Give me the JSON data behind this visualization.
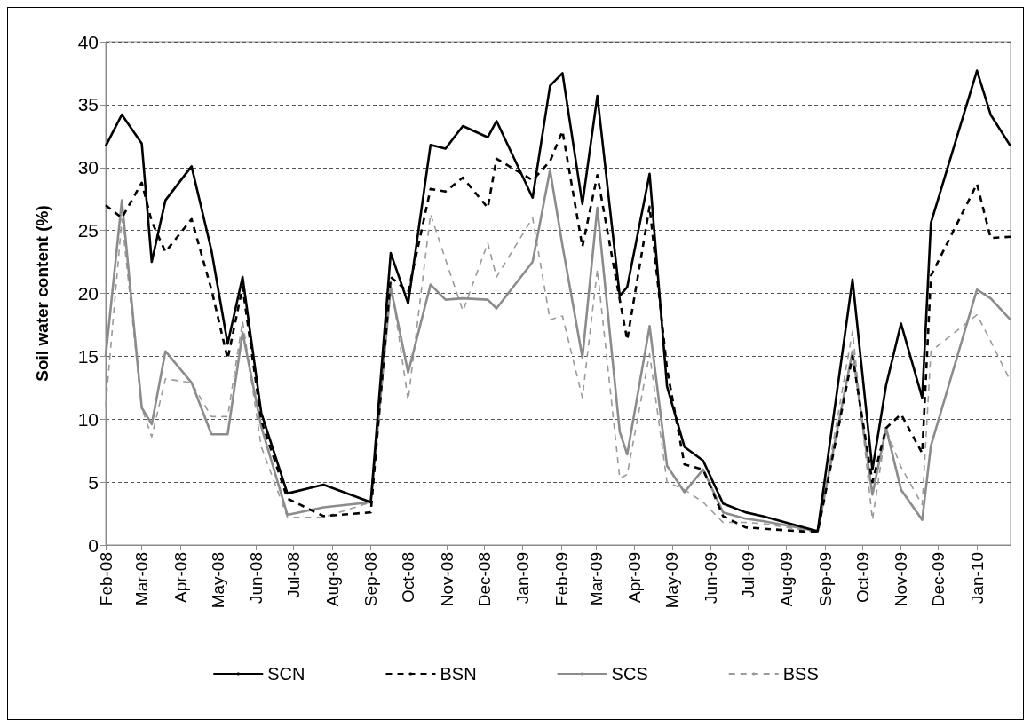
{
  "chart_data": {
    "type": "line",
    "ylabel": "Soil water content (%)",
    "x": [
      "2008-02-01",
      "2008-02-14",
      "2008-03-01",
      "2008-03-09",
      "2008-03-20",
      "2008-04-10",
      "2008-04-26",
      "2008-05-09",
      "2008-05-21",
      "2008-06-05",
      "2008-06-26",
      "2008-07-25",
      "2008-09-01",
      "2008-09-17",
      "2008-10-01",
      "2008-10-19",
      "2008-10-31",
      "2008-11-14",
      "2008-12-04",
      "2008-12-11",
      "2009-01-09",
      "2009-01-23",
      "2009-02-02",
      "2009-02-18",
      "2009-03-02",
      "2009-03-20",
      "2009-03-26",
      "2009-04-13",
      "2009-04-27",
      "2009-05-11",
      "2009-05-26",
      "2009-06-11",
      "2009-06-29",
      "2009-07-13",
      "2009-08-26",
      "2009-09-23",
      "2009-10-09",
      "2009-10-20",
      "2009-11-01",
      "2009-11-18",
      "2009-11-25",
      "2010-01-01",
      "2010-01-12",
      "2010-01-28"
    ],
    "xlim": [
      "2008-02-01",
      "2010-01-28"
    ],
    "xticks": [
      {
        "value": "2008-02-01",
        "label": "Feb-08"
      },
      {
        "value": "2008-03-01",
        "label": "Mar-08"
      },
      {
        "value": "2008-04-01",
        "label": "Apr-08"
      },
      {
        "value": "2008-05-01",
        "label": "May-08"
      },
      {
        "value": "2008-06-01",
        "label": "Jun-08"
      },
      {
        "value": "2008-07-01",
        "label": "Jul-08"
      },
      {
        "value": "2008-08-01",
        "label": "Aug-08"
      },
      {
        "value": "2008-09-01",
        "label": "Sep-08"
      },
      {
        "value": "2008-10-01",
        "label": "Oct-08"
      },
      {
        "value": "2008-11-01",
        "label": "Nov-08"
      },
      {
        "value": "2008-12-01",
        "label": "Dec-08"
      },
      {
        "value": "2009-01-01",
        "label": "Jan-09"
      },
      {
        "value": "2009-02-01",
        "label": "Feb-09"
      },
      {
        "value": "2009-03-01",
        "label": "Mar-09"
      },
      {
        "value": "2009-04-01",
        "label": "Apr-09"
      },
      {
        "value": "2009-05-01",
        "label": "May-09"
      },
      {
        "value": "2009-06-01",
        "label": "Jun-09"
      },
      {
        "value": "2009-07-01",
        "label": "Jul-09"
      },
      {
        "value": "2009-08-01",
        "label": "Aug-09"
      },
      {
        "value": "2009-09-01",
        "label": "Sep-09"
      },
      {
        "value": "2009-10-01",
        "label": "Oct-09"
      },
      {
        "value": "2009-11-01",
        "label": "Nov-09"
      },
      {
        "value": "2009-12-01",
        "label": "Dec-09"
      },
      {
        "value": "2010-01-01",
        "label": "Jan-10"
      }
    ],
    "ylim": [
      0,
      40
    ],
    "yticks": [
      0,
      5,
      10,
      15,
      20,
      25,
      30,
      35,
      40
    ],
    "grid": "y",
    "legend": "bottom",
    "marker": "none",
    "series": [
      {
        "name": "SCN",
        "color": "#000000",
        "line_style": "solid",
        "values": [
          31.7,
          34.2,
          31.9,
          22.5,
          27.4,
          30.1,
          23.4,
          16.0,
          21.3,
          10.5,
          4.1,
          4.8,
          3.4,
          23.2,
          19.2,
          31.8,
          31.5,
          33.3,
          32.4,
          33.7,
          27.6,
          36.5,
          37.5,
          27.1,
          35.7,
          19.8,
          20.5,
          29.5,
          12.6,
          7.8,
          6.7,
          3.3,
          2.6,
          2.3,
          1.1,
          21.1,
          6.0,
          12.7,
          17.6,
          11.7,
          25.6,
          37.7,
          34.2,
          31.7
        ]
      },
      {
        "name": "BSN",
        "color": "#000000",
        "line_style": "dashed",
        "values": [
          27.0,
          26.0,
          28.8,
          25.7,
          23.3,
          25.9,
          20.3,
          14.8,
          20.5,
          9.9,
          3.7,
          2.3,
          2.6,
          21.3,
          20.1,
          28.3,
          28.1,
          29.2,
          26.8,
          30.7,
          29.0,
          30.5,
          32.9,
          23.7,
          29.4,
          19.5,
          16.3,
          26.9,
          14.0,
          6.4,
          6.0,
          2.3,
          1.4,
          1.3,
          1.0,
          15.0,
          5.0,
          9.3,
          10.4,
          7.3,
          21.4,
          28.7,
          24.4,
          24.5
        ]
      },
      {
        "name": "SCS",
        "color": "#8c8c8c",
        "line_style": "solid",
        "values": [
          15.0,
          27.4,
          10.9,
          9.6,
          15.4,
          12.9,
          8.8,
          8.8,
          16.9,
          9.4,
          2.4,
          3.0,
          3.4,
          20.5,
          13.7,
          20.7,
          19.5,
          19.6,
          19.5,
          18.8,
          22.5,
          29.8,
          23.8,
          14.9,
          26.8,
          9.0,
          7.2,
          17.4,
          6.3,
          4.2,
          6.0,
          2.6,
          2.1,
          1.9,
          1.1,
          15.4,
          4.0,
          9.3,
          4.4,
          2.0,
          7.9,
          20.3,
          19.6,
          17.9
        ]
      },
      {
        "name": "BSS",
        "color": "#9a9a9a",
        "line_style": "dashed",
        "values": [
          11.1,
          25.9,
          10.9,
          8.6,
          13.2,
          12.9,
          10.2,
          10.2,
          17.8,
          7.8,
          2.2,
          2.2,
          3.4,
          21.0,
          11.5,
          26.3,
          22.7,
          18.6,
          24.0,
          21.3,
          26.0,
          17.9,
          18.2,
          11.7,
          21.9,
          5.3,
          5.6,
          15.2,
          5.0,
          4.4,
          3.4,
          1.8,
          1.8,
          1.7,
          1.0,
          17.0,
          2.0,
          9.2,
          6.2,
          3.2,
          15.4,
          18.3,
          16.2,
          13.0
        ]
      }
    ]
  }
}
